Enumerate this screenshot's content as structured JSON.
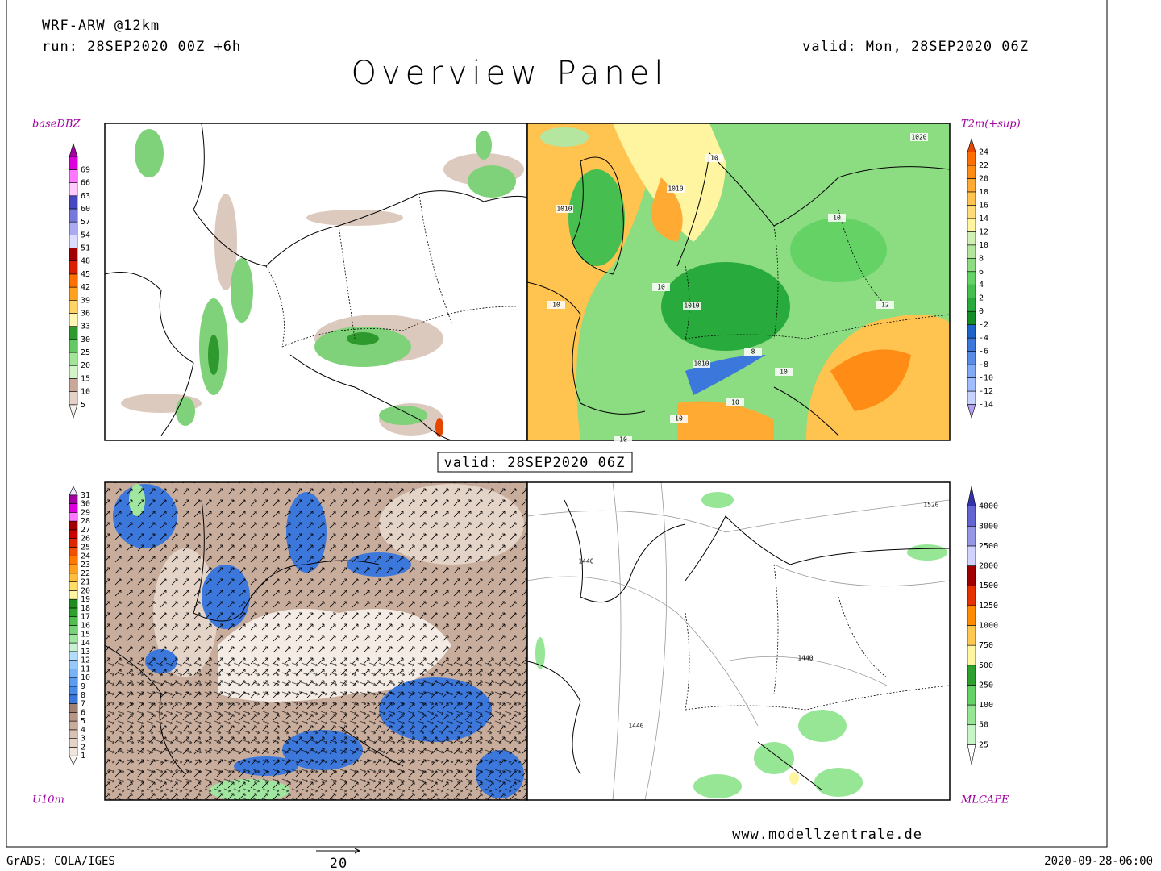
{
  "header": {
    "model": "WRF-ARW @12km",
    "run": "run: 28SEP2020 00Z +6h",
    "valid": "valid: Mon, 28SEP2020 06Z",
    "title": "Overview Panel"
  },
  "center_label": "valid: 28SEP2020 06Z",
  "panels": [
    {
      "label": "baseDBZ",
      "colorbar": {
        "ticks": [
          5,
          10,
          15,
          20,
          25,
          30,
          33,
          36,
          39,
          42,
          45,
          48,
          51,
          54,
          57,
          60,
          63,
          66,
          69
        ],
        "colors": [
          "#f8f2ee",
          "#e4d2c8",
          "#c8a898",
          "#d2f5c8",
          "#a0e696",
          "#64c864",
          "#2e9a2e",
          "#fff5b4",
          "#ffd264",
          "#ffa01e",
          "#ff6e00",
          "#dc1e00",
          "#a00000",
          "#dcdcff",
          "#aaaaf0",
          "#7878dc",
          "#4646c0",
          "#ffc8ff",
          "#ff78ff",
          "#dc00dc",
          "#a000a0"
        ]
      }
    },
    {
      "label": "T2m(+sup)",
      "colorbar": {
        "ticks": [
          -14,
          -12,
          -10,
          -8,
          -6,
          -4,
          -2,
          0,
          2,
          4,
          6,
          8,
          10,
          12,
          14,
          16,
          18,
          20,
          22,
          24
        ],
        "colors": [
          "#b4a0f0",
          "#c8d2ff",
          "#a0beff",
          "#82aaf5",
          "#5a8ce6",
          "#3c78dc",
          "#1e64c8",
          "#148c28",
          "#28aa3c",
          "#46be50",
          "#64d264",
          "#8cdc82",
          "#b4e6a0",
          "#d2f0b4",
          "#fff5a0",
          "#ffdc78",
          "#ffc350",
          "#ffaa32",
          "#ff8c14",
          "#ff6e00",
          "#e64600"
        ]
      },
      "contour_labels": [
        "1020",
        "1010",
        "1010",
        "10",
        "10",
        "10",
        "10",
        "1010",
        "1010",
        "8",
        "10",
        "10",
        "12",
        "10",
        "10"
      ]
    },
    {
      "label": "U10m",
      "colorbar": {
        "ticks": [
          1,
          2,
          3,
          4,
          5,
          6,
          7,
          8,
          9,
          10,
          11,
          12,
          13,
          14,
          15,
          16,
          17,
          18,
          19,
          20,
          21,
          22,
          23,
          24,
          25,
          26,
          27,
          28,
          29,
          30,
          31
        ],
        "colors": [
          "#fbf6f2",
          "#f0e6de",
          "#e4d4c8",
          "#d8c2b4",
          "#c8ac9c",
          "#b89686",
          "#a08070",
          "#3c78dc",
          "#4a8ae6",
          "#5c9cf0",
          "#78b4f5",
          "#96c8fa",
          "#b4dcff",
          "#c8f0d2",
          "#a0e6a0",
          "#78d278",
          "#50be50",
          "#2ea02e",
          "#1e8c1e",
          "#fff5a0",
          "#ffdc64",
          "#ffbe3c",
          "#ffa01e",
          "#ff7800",
          "#f05000",
          "#dc2800",
          "#c80000",
          "#a00000",
          "#ff78ff",
          "#dc00dc",
          "#a000a0",
          "#f0e6ff"
        ]
      }
    },
    {
      "label": "MLCAPE",
      "colorbar": {
        "ticks": [
          25,
          50,
          100,
          250,
          500,
          750,
          1000,
          1250,
          1500,
          2000,
          2500,
          3000,
          4000
        ],
        "colors": [
          "#ffffff",
          "#c8f5c8",
          "#96e696",
          "#64d264",
          "#2ea02e",
          "#fff5a0",
          "#ffc850",
          "#ff8c00",
          "#e63200",
          "#a00000",
          "#d2d2ff",
          "#9696e6",
          "#6464d2",
          "#3232aa"
        ]
      },
      "contour_labels": [
        "1520",
        "1440",
        "1440",
        "1440"
      ]
    }
  ],
  "footer": {
    "website": "www.modellzentrale.de",
    "software": "GrADS: COLA/IGES",
    "vector_scale": "20",
    "timestamp": "2020-09-28-06:00"
  }
}
